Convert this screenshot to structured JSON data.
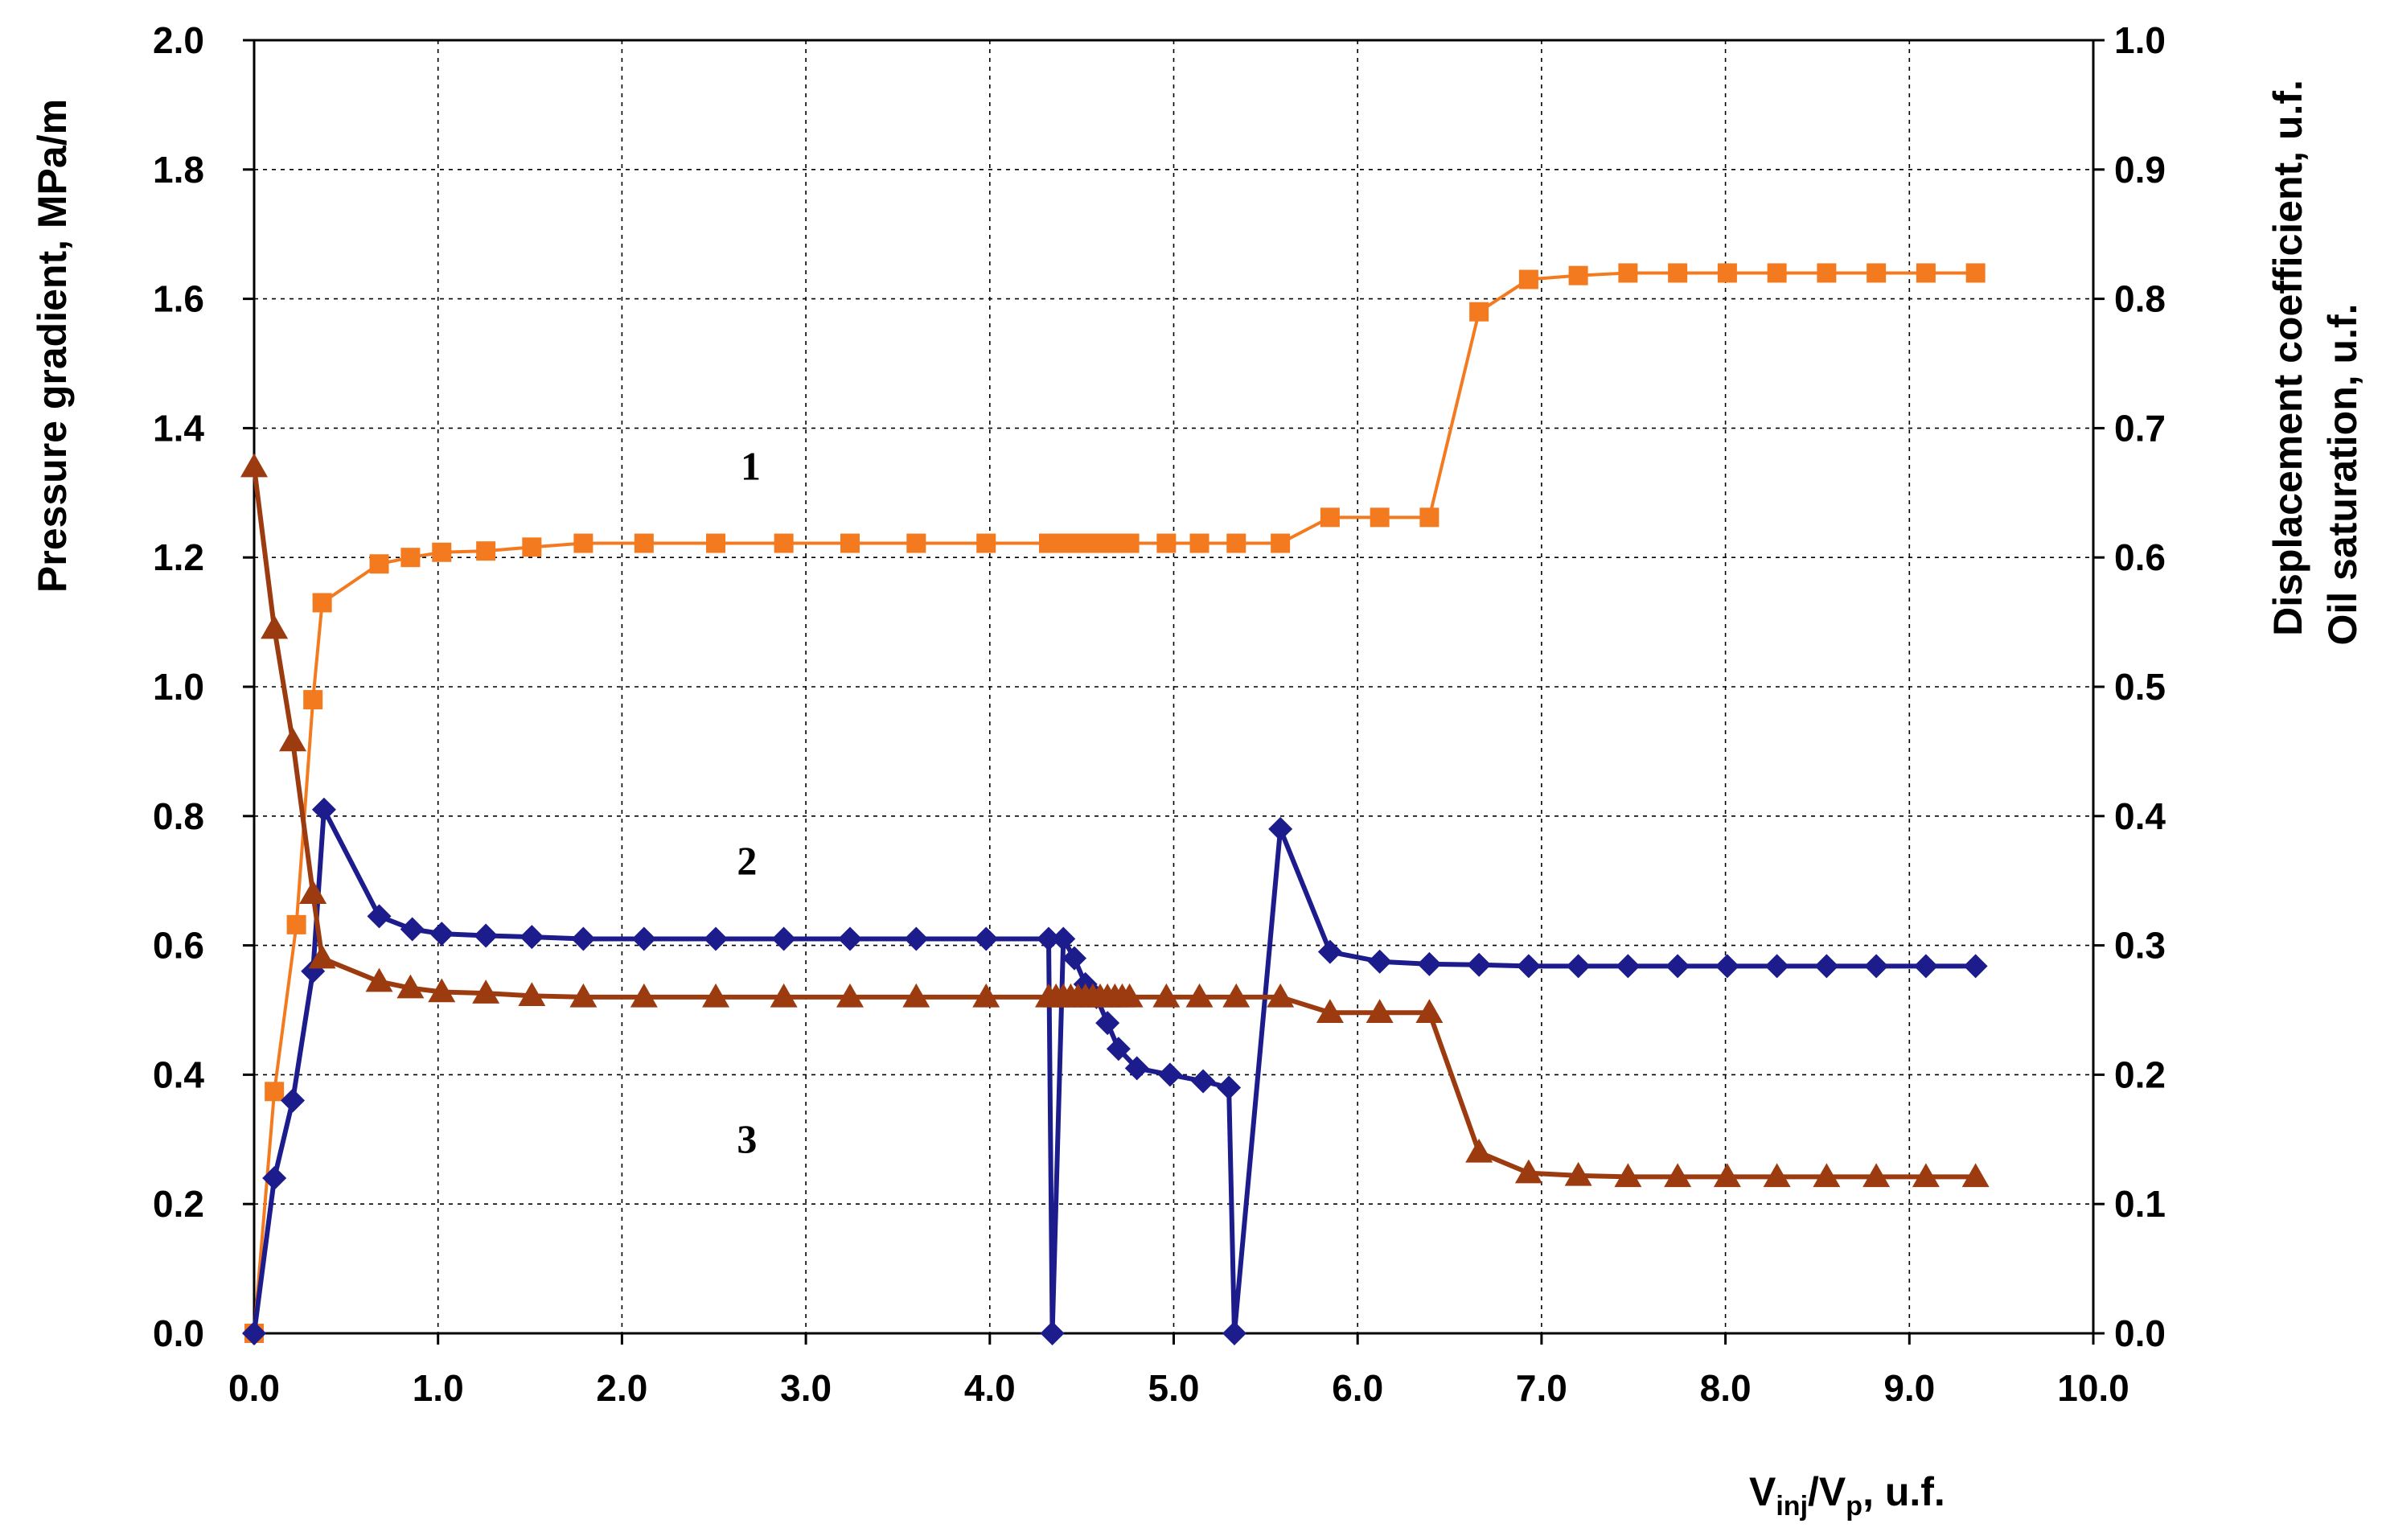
{
  "chart_data": {
    "type": "line",
    "xlabel": {
      "main": "V",
      "sub1": "inj",
      "mid": "/V",
      "sub2": "p",
      "tail": ", u.f."
    },
    "ylabel_left": "Pressure gradient, MPa/m",
    "ylabel_right": [
      "Displacement coefficient, u.f.",
      "Oil saturation, u.f."
    ],
    "xlim": [
      0,
      10
    ],
    "ylim_left": [
      0,
      2
    ],
    "ylim_right": [
      0,
      1
    ],
    "grid": true,
    "x_ticks": [
      "0.0",
      "1.0",
      "2.0",
      "3.0",
      "4.0",
      "5.0",
      "6.0",
      "7.0",
      "8.0",
      "9.0",
      "10.0"
    ],
    "y_left_ticks": [
      "0.0",
      "0.2",
      "0.4",
      "0.6",
      "0.8",
      "1.0",
      "1.2",
      "1.4",
      "1.6",
      "1.8",
      "2.0"
    ],
    "y_right_ticks": [
      "0.0",
      "0.1",
      "0.2",
      "0.3",
      "0.4",
      "0.5",
      "0.6",
      "0.7",
      "0.8",
      "0.9",
      "1.0"
    ],
    "series": [
      {
        "label": "1",
        "axis": "right",
        "color": "#f47a20",
        "marker": "square",
        "x": [
          0,
          0.11,
          0.23,
          0.32,
          0.37,
          0.68,
          0.85,
          1.02,
          1.26,
          1.51,
          1.79,
          2.12,
          2.51,
          2.88,
          3.24,
          3.6,
          3.98,
          4.32,
          4.36,
          4.4,
          4.44,
          4.48,
          4.52,
          4.56,
          4.6,
          4.64,
          4.68,
          4.72,
          4.76,
          4.96,
          5.14,
          5.34,
          5.58,
          5.85,
          6.12,
          6.39,
          6.66,
          6.93,
          7.2,
          7.47,
          7.74,
          8.01,
          8.28,
          8.55,
          8.82,
          9.09,
          9.36
        ],
        "y": [
          0,
          0.187,
          0.316,
          0.49,
          0.565,
          0.595,
          0.6,
          0.604,
          0.605,
          0.608,
          0.611,
          0.611,
          0.611,
          0.611,
          0.611,
          0.611,
          0.611,
          0.611,
          0.611,
          0.611,
          0.611,
          0.611,
          0.611,
          0.611,
          0.611,
          0.611,
          0.611,
          0.611,
          0.611,
          0.611,
          0.611,
          0.611,
          0.611,
          0.631,
          0.631,
          0.631,
          0.79,
          0.815,
          0.818,
          0.82,
          0.82,
          0.82,
          0.82,
          0.82,
          0.82,
          0.82,
          0.82
        ]
      },
      {
        "label": "2",
        "axis": "left",
        "color": "#1c1c8c",
        "marker": "diamond",
        "x": [
          0,
          0.11,
          0.21,
          0.32,
          0.38,
          0.68,
          0.86,
          1.02,
          1.26,
          1.51,
          1.79,
          2.12,
          2.51,
          2.88,
          3.24,
          3.6,
          3.98,
          4.32,
          4.34,
          4.4,
          4.46,
          4.52,
          4.58,
          4.64,
          4.7,
          4.8,
          4.98,
          5.16,
          5.3,
          5.33,
          5.58,
          5.85,
          6.12,
          6.39,
          6.66,
          6.93,
          7.2,
          7.47,
          7.74,
          8.01,
          8.28,
          8.55,
          8.82,
          9.09,
          9.36
        ],
        "y": [
          0,
          0.24,
          0.36,
          0.56,
          0.81,
          0.645,
          0.625,
          0.618,
          0.615,
          0.613,
          0.61,
          0.61,
          0.61,
          0.61,
          0.61,
          0.61,
          0.61,
          0.61,
          0,
          0.61,
          0.58,
          0.54,
          0.52,
          0.48,
          0.44,
          0.41,
          0.4,
          0.39,
          0.38,
          0,
          0.78,
          0.59,
          0.575,
          0.571,
          0.57,
          0.568,
          0.568,
          0.568,
          0.568,
          0.568,
          0.568,
          0.568,
          0.568,
          0.568,
          0.568
        ]
      },
      {
        "label": "3",
        "axis": "right",
        "color": "#9c3b10",
        "marker": "triangle",
        "x": [
          0,
          0.11,
          0.21,
          0.32,
          0.37,
          0.68,
          0.85,
          1.02,
          1.26,
          1.51,
          1.79,
          2.12,
          2.51,
          2.88,
          3.24,
          3.6,
          3.98,
          4.32,
          4.36,
          4.4,
          4.44,
          4.48,
          4.52,
          4.56,
          4.6,
          4.64,
          4.68,
          4.72,
          4.76,
          4.96,
          5.14,
          5.34,
          5.58,
          5.85,
          6.12,
          6.39,
          6.66,
          6.93,
          7.2,
          7.47,
          7.74,
          8.01,
          8.28,
          8.55,
          8.82,
          9.09,
          9.36
        ],
        "y": [
          0.67,
          0.545,
          0.458,
          0.34,
          0.29,
          0.272,
          0.267,
          0.264,
          0.263,
          0.261,
          0.26,
          0.26,
          0.26,
          0.26,
          0.26,
          0.26,
          0.26,
          0.26,
          0.26,
          0.26,
          0.26,
          0.26,
          0.26,
          0.26,
          0.26,
          0.26,
          0.26,
          0.26,
          0.26,
          0.26,
          0.26,
          0.26,
          0.26,
          0.248,
          0.248,
          0.248,
          0.14,
          0.124,
          0.122,
          0.121,
          0.121,
          0.121,
          0.121,
          0.121,
          0.121,
          0.121,
          0.121
        ]
      }
    ],
    "annotations": [
      {
        "text": "1",
        "x": 2.7,
        "y_left": 1.32
      },
      {
        "text": "2",
        "x": 2.68,
        "y_left": 0.71
      },
      {
        "text": "3",
        "x": 2.68,
        "y_left": 0.28
      }
    ]
  }
}
